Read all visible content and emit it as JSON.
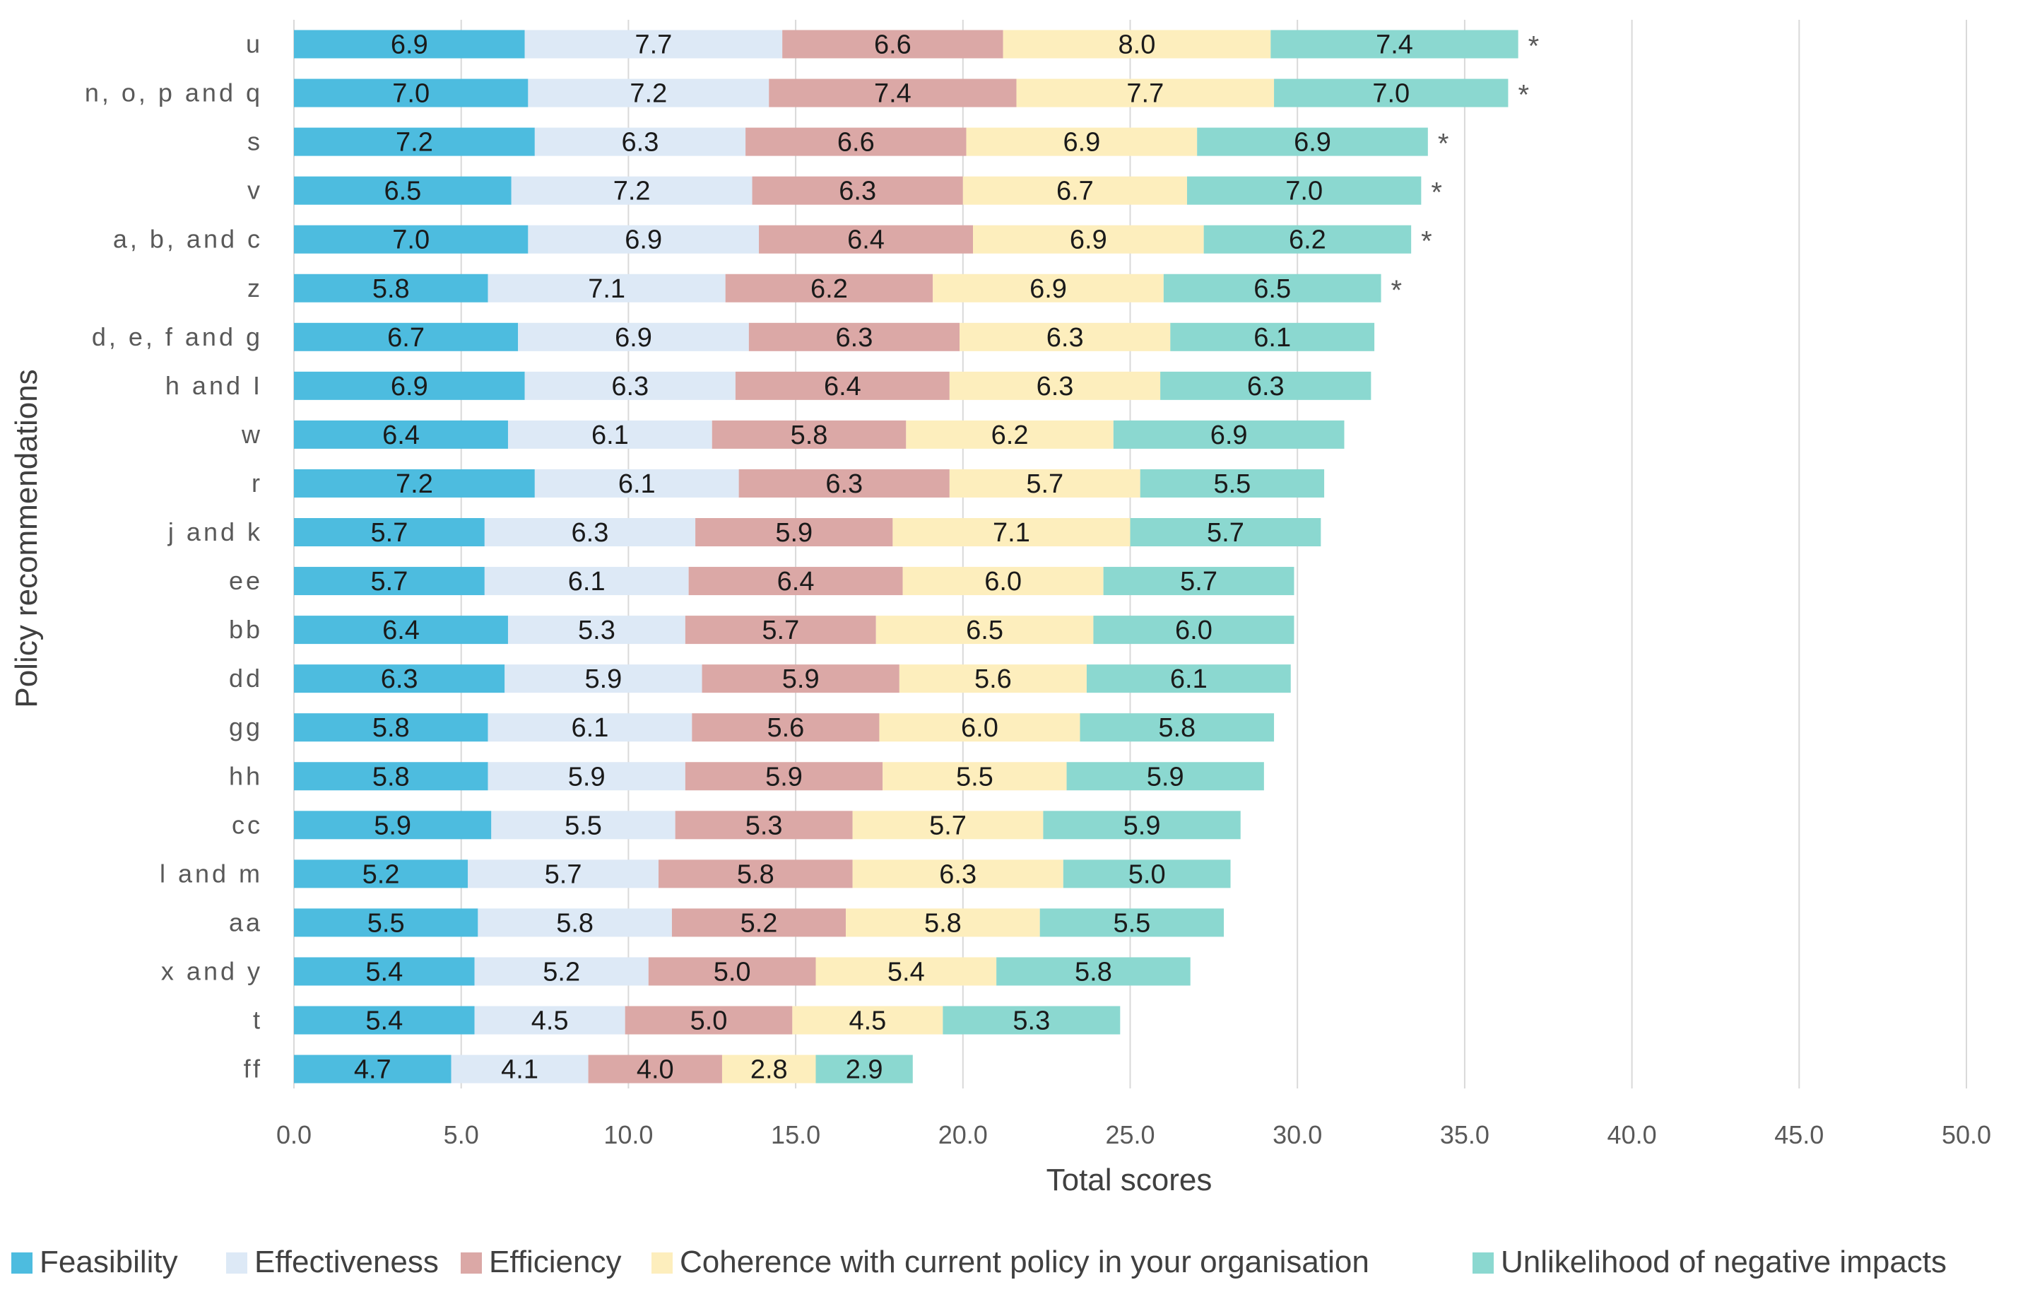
{
  "chart_data": {
    "type": "bar",
    "orientation": "horizontal",
    "stacked": true,
    "title": "",
    "xlabel": "Total scores",
    "ylabel": "Policy recommendations",
    "xlim": [
      0,
      50
    ],
    "xticks": [
      "0.0",
      "5.0",
      "10.0",
      "15.0",
      "20.0",
      "25.0",
      "30.0",
      "35.0",
      "40.0",
      "45.0",
      "50.0"
    ],
    "grid": "vertical",
    "legend_position": "bottom",
    "categories": [
      "u",
      "n, o, p and q",
      "s",
      "v",
      "a, b, and c",
      "z",
      "d, e, f and g",
      "h and I",
      "w",
      "r",
      "j and k",
      "ee",
      "bb",
      "dd",
      "gg",
      "hh",
      "cc",
      "l and m",
      "aa",
      "x and y",
      "t",
      "ff"
    ],
    "marked": [
      "*",
      "*",
      "*",
      "*",
      "*",
      "*",
      "",
      "",
      "",
      "",
      "",
      "",
      "",
      "",
      "",
      "",
      "",
      "",
      "",
      "",
      "",
      ""
    ],
    "series": [
      {
        "name": "Feasibility",
        "color": "#4dbcdf",
        "values": [
          6.9,
          7.0,
          7.2,
          6.5,
          7.0,
          5.8,
          6.7,
          6.9,
          6.4,
          7.2,
          5.7,
          5.7,
          6.4,
          6.3,
          5.8,
          5.8,
          5.9,
          5.2,
          5.5,
          5.4,
          5.4,
          4.7
        ]
      },
      {
        "name": "Effectiveness",
        "color": "#dde9f6",
        "values": [
          7.7,
          7.2,
          6.3,
          7.2,
          6.9,
          7.1,
          6.9,
          6.3,
          6.1,
          6.1,
          6.3,
          6.1,
          5.3,
          5.9,
          6.1,
          5.9,
          5.5,
          5.7,
          5.8,
          5.2,
          4.5,
          4.1
        ]
      },
      {
        "name": "Efficiency",
        "color": "#dba8a6",
        "values": [
          6.6,
          7.4,
          6.6,
          6.3,
          6.4,
          6.2,
          6.3,
          6.4,
          5.8,
          6.3,
          5.9,
          6.4,
          5.7,
          5.9,
          5.6,
          5.9,
          5.3,
          5.8,
          5.2,
          5.0,
          5.0,
          4.0
        ]
      },
      {
        "name": "Coherence with current policy in your organisation",
        "color": "#fdeebd",
        "values": [
          8.0,
          7.7,
          6.9,
          6.7,
          6.9,
          6.9,
          6.3,
          6.3,
          6.2,
          5.7,
          7.1,
          6.0,
          6.5,
          5.6,
          6.0,
          5.5,
          5.7,
          6.3,
          5.8,
          5.4,
          4.5,
          2.8
        ]
      },
      {
        "name": "Unlikelihood of negative impacts",
        "color": "#8bd8d0",
        "values": [
          7.4,
          7.0,
          6.9,
          7.0,
          6.2,
          6.5,
          6.1,
          6.3,
          6.9,
          5.5,
          5.7,
          5.7,
          6.0,
          6.1,
          5.8,
          5.9,
          5.9,
          5.0,
          5.5,
          5.8,
          5.3,
          2.9
        ]
      }
    ]
  }
}
